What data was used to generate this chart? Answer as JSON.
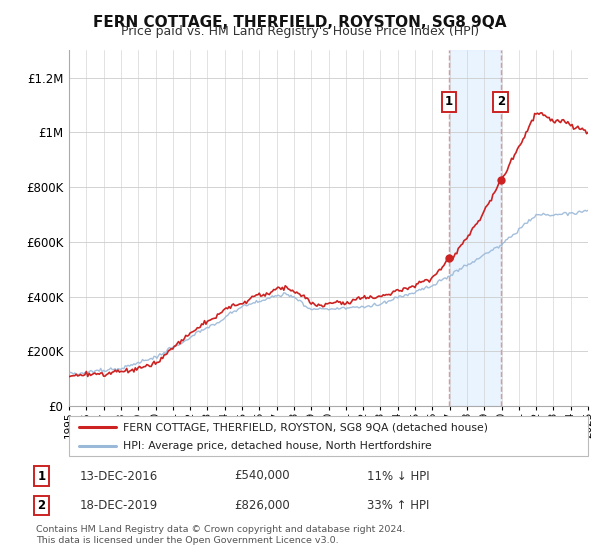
{
  "title": "FERN COTTAGE, THERFIELD, ROYSTON, SG8 9QA",
  "subtitle": "Price paid vs. HM Land Registry's House Price Index (HPI)",
  "title_fontsize": 11,
  "subtitle_fontsize": 9,
  "ylim": [
    0,
    1300000
  ],
  "yticks": [
    0,
    200000,
    400000,
    600000,
    800000,
    1000000,
    1200000
  ],
  "ytick_labels": [
    "£0",
    "£200K",
    "£400K",
    "£600K",
    "£800K",
    "£1M",
    "£1.2M"
  ],
  "hpi_color": "#9ab8d8",
  "price_color": "#cc2222",
  "dot_color": "#cc2222",
  "shade_color": "#ddeeff",
  "vline_color": "#dd9999",
  "annotation_box_color": "#cc2222",
  "legend_label_red": "FERN COTTAGE, THERFIELD, ROYSTON, SG8 9QA (detached house)",
  "legend_label_blue": "HPI: Average price, detached house, North Hertfordshire",
  "sale1_year": 2016.96,
  "sale1_price": 540000,
  "sale1_label": "1",
  "sale1_hpi_note": "11% ↓ HPI",
  "sale1_date": "13-DEC-2016",
  "sale2_year": 2019.96,
  "sale2_price": 826000,
  "sale2_label": "2",
  "sale2_hpi_note": "33% ↑ HPI",
  "sale2_date": "18-DEC-2019",
  "footer_text": "Contains HM Land Registry data © Crown copyright and database right 2024.\nThis data is licensed under the Open Government Licence v3.0.",
  "xmin": 1995,
  "xmax": 2025
}
